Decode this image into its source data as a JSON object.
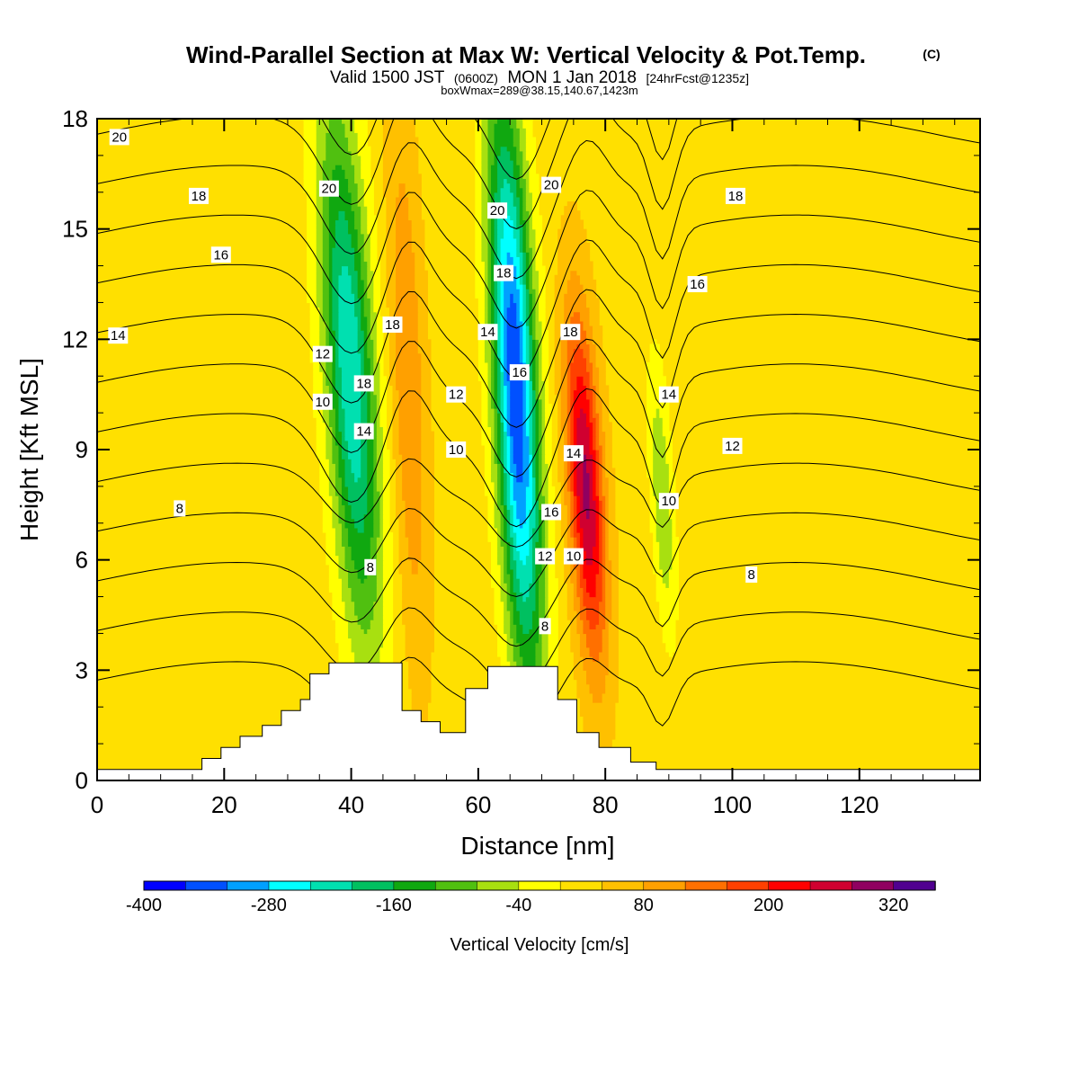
{
  "header": {
    "title_main": "Wind-Parallel Section at Max W: Vertical Velocity & Pot.Temp.",
    "title_copyright": "(C)",
    "valid_prefix": "Valid 1500 JST",
    "valid_utc": "(0600Z)",
    "valid_date": "MON 1 Jan 2018",
    "forecast_info": "[24hrFcst@1235z]",
    "box_info": "boxWmax=289@38.15,140.67,1423m"
  },
  "chart_data": {
    "type": "heatmap",
    "xlabel": "Distance [nm]",
    "ylabel": "Height [Kft MSL]",
    "xlim": [
      0,
      139
    ],
    "ylim": [
      0,
      18
    ],
    "x_ticks": [
      0,
      20,
      40,
      60,
      80,
      100,
      120
    ],
    "y_ticks": [
      0,
      3,
      6,
      9,
      12,
      15,
      18
    ],
    "colorbar": {
      "title": "Vertical Velocity [cm/s]",
      "levels": [
        -400,
        -360,
        -320,
        -280,
        -240,
        -200,
        -160,
        -120,
        -80,
        -40,
        0,
        40,
        80,
        120,
        160,
        200,
        240,
        280,
        320,
        360
      ],
      "tick_labels": [
        -400,
        -280,
        -160,
        -40,
        80,
        200,
        320
      ],
      "colors": [
        "#0000ff",
        "#0050ff",
        "#00a0ff",
        "#00ffff",
        "#00e0b0",
        "#00c060",
        "#10a810",
        "#50c010",
        "#a8e010",
        "#ffff00",
        "#ffe000",
        "#ffc000",
        "#ffa000",
        "#ff7000",
        "#ff4000",
        "#ff0000",
        "#d00030",
        "#900060",
        "#500090"
      ]
    },
    "vertical_velocity_features": [
      {
        "kind": "downdraft",
        "x_range": [
          33,
          47
        ],
        "height_range": [
          3.5,
          18
        ],
        "min_value": -240
      },
      {
        "kind": "updraft",
        "x_range": [
          44,
          54
        ],
        "height_range": [
          3,
          18
        ],
        "max_value": 120
      },
      {
        "kind": "downdraft",
        "x_range": [
          60,
          72
        ],
        "height_range": [
          2.5,
          18
        ],
        "min_value": -360
      },
      {
        "kind": "updraft",
        "x_range": [
          72,
          82
        ],
        "height_range": [
          3,
          12.5
        ],
        "max_value": 289
      },
      {
        "kind": "downdraft",
        "x_range": [
          86,
          92
        ],
        "height_range": [
          4,
          11
        ],
        "min_value": -80
      }
    ],
    "potential_temperature_contours": {
      "units": "C",
      "levels": [
        8,
        9,
        10,
        11,
        12,
        13,
        14,
        15,
        16,
        17,
        18,
        19,
        20
      ],
      "labels": [
        {
          "text": "20",
          "x": 3.5,
          "y": 17.5
        },
        {
          "text": "18",
          "x": 16,
          "y": 15.9
        },
        {
          "text": "16",
          "x": 19.5,
          "y": 14.3
        },
        {
          "text": "14",
          "x": 3.3,
          "y": 12.1
        },
        {
          "text": "8",
          "x": 13,
          "y": 7.4
        },
        {
          "text": "20",
          "x": 36.5,
          "y": 16.1
        },
        {
          "text": "12",
          "x": 35.5,
          "y": 11.6
        },
        {
          "text": "10",
          "x": 35.5,
          "y": 10.3
        },
        {
          "text": "18",
          "x": 42,
          "y": 10.8
        },
        {
          "text": "14",
          "x": 42,
          "y": 9.5
        },
        {
          "text": "8",
          "x": 43,
          "y": 5.8
        },
        {
          "text": "18",
          "x": 46.5,
          "y": 12.4
        },
        {
          "text": "12",
          "x": 56.5,
          "y": 10.5
        },
        {
          "text": "10",
          "x": 56.5,
          "y": 9.0
        },
        {
          "text": "20",
          "x": 63,
          "y": 15.5
        },
        {
          "text": "18",
          "x": 64,
          "y": 13.8
        },
        {
          "text": "14",
          "x": 61.5,
          "y": 12.2
        },
        {
          "text": "16",
          "x": 66.5,
          "y": 11.1
        },
        {
          "text": "16",
          "x": 71.5,
          "y": 7.3
        },
        {
          "text": "12",
          "x": 70.5,
          "y": 6.1
        },
        {
          "text": "8",
          "x": 70.5,
          "y": 4.2
        },
        {
          "text": "20",
          "x": 71.5,
          "y": 16.2
        },
        {
          "text": "18",
          "x": 74.5,
          "y": 12.2
        },
        {
          "text": "14",
          "x": 75,
          "y": 8.9
        },
        {
          "text": "10",
          "x": 75,
          "y": 6.1
        },
        {
          "text": "18",
          "x": 100.5,
          "y": 15.9
        },
        {
          "text": "16",
          "x": 94.5,
          "y": 13.5
        },
        {
          "text": "14",
          "x": 90,
          "y": 10.5
        },
        {
          "text": "12",
          "x": 100,
          "y": 9.1
        },
        {
          "text": "10",
          "x": 90,
          "y": 7.6
        },
        {
          "text": "8",
          "x": 103,
          "y": 5.6
        }
      ]
    },
    "terrain_nm_kft": [
      [
        0,
        0.3
      ],
      [
        14.5,
        0.3
      ],
      [
        16.5,
        0.6
      ],
      [
        19.5,
        0.9
      ],
      [
        22.5,
        1.2
      ],
      [
        26,
        1.5
      ],
      [
        29,
        1.9
      ],
      [
        32,
        2.2
      ],
      [
        33.5,
        2.9
      ],
      [
        36.5,
        3.2
      ],
      [
        46,
        3.2
      ],
      [
        48,
        1.9
      ],
      [
        51,
        1.6
      ],
      [
        54,
        1.3
      ],
      [
        57,
        1.3
      ],
      [
        58,
        2.5
      ],
      [
        61.5,
        3.1
      ],
      [
        70.5,
        3.1
      ],
      [
        72.5,
        2.2
      ],
      [
        75.5,
        1.3
      ],
      [
        79,
        0.9
      ],
      [
        84,
        0.5
      ],
      [
        88,
        0.3
      ],
      [
        139,
        0.3
      ]
    ]
  }
}
